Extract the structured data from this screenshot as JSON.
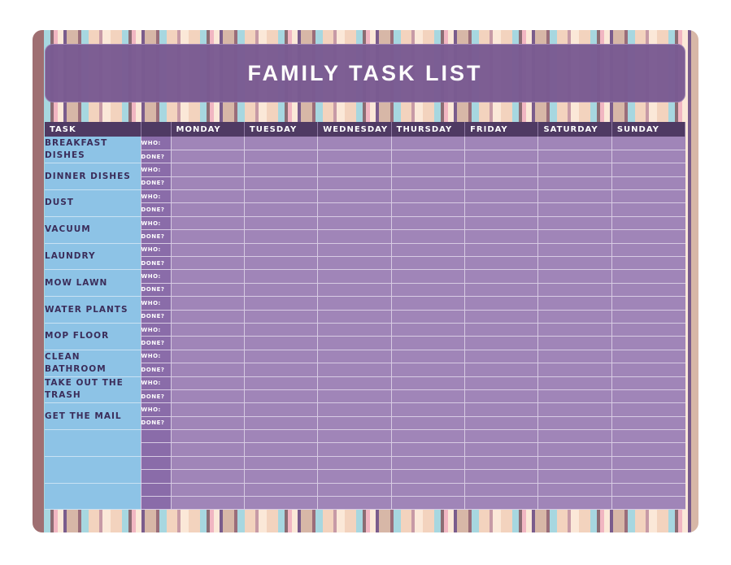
{
  "title": "FAMILY TASK LIST",
  "headers": {
    "task": "TASK",
    "sub": "",
    "days": [
      "MONDAY",
      "TUESDAY",
      "WEDNESDAY",
      "THURSDAY",
      "FRIDAY",
      "SATURDAY",
      "SUNDAY"
    ]
  },
  "sub_labels": {
    "who": "WHO:",
    "done": "DONE?"
  },
  "tasks": [
    "BREAKFAST DISHES",
    "DINNER DISHES",
    "DUST",
    "VACUUM",
    "LAUNDRY",
    "MOW LAWN",
    "WATER PLANTS",
    "MOP FLOOR",
    "CLEAN BATHROOM",
    "TAKE OUT THE TRASH",
    "GET THE MAIL",
    "",
    "",
    ""
  ],
  "colors": {
    "header_bg": "#4f3a63",
    "task_bg": "#8dc3e6",
    "day_bg": "#a085b8",
    "title_bg": "#7a5b92"
  }
}
